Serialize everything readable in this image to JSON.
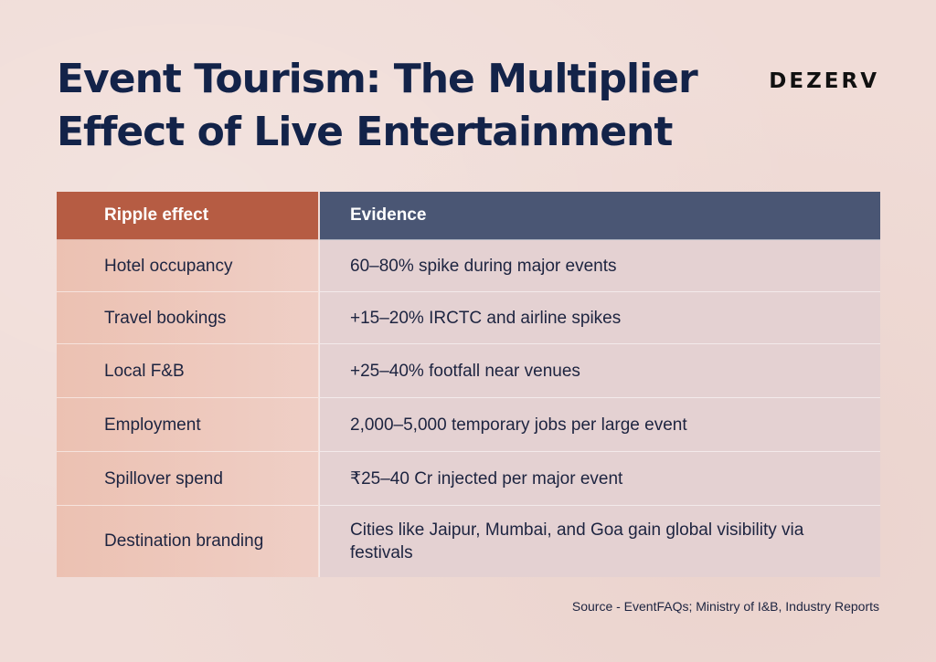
{
  "header": {
    "title": "Event Tourism: The Multiplier Effect of Live Entertainment",
    "brand": "DEZERV"
  },
  "table": {
    "columns": [
      "Ripple effect",
      "Evidence"
    ],
    "rows": [
      {
        "effect": "Hotel occupancy",
        "evidence": "60–80% spike during major events"
      },
      {
        "effect": "Travel bookings",
        "evidence": "+15–20% IRCTC and airline spikes"
      },
      {
        "effect": "Local F&B",
        "evidence": "+25–40% footfall near venues"
      },
      {
        "effect": "Employment",
        "evidence": "2,000–5,000 temporary jobs per large event"
      },
      {
        "effect": "Spillover spend",
        "evidence": "₹25–40 Cr injected per major event"
      },
      {
        "effect": "Destination branding",
        "evidence": "Cities like Jaipur, Mumbai, and Goa gain global visibility via festivals"
      }
    ]
  },
  "footer": {
    "source": "Source - EventFAQs; Ministry of I&B, Industry Reports"
  },
  "colors": {
    "background": "#f0dcd7",
    "title": "#132349",
    "header_left": "#b65c43",
    "header_right": "#4a5674"
  }
}
